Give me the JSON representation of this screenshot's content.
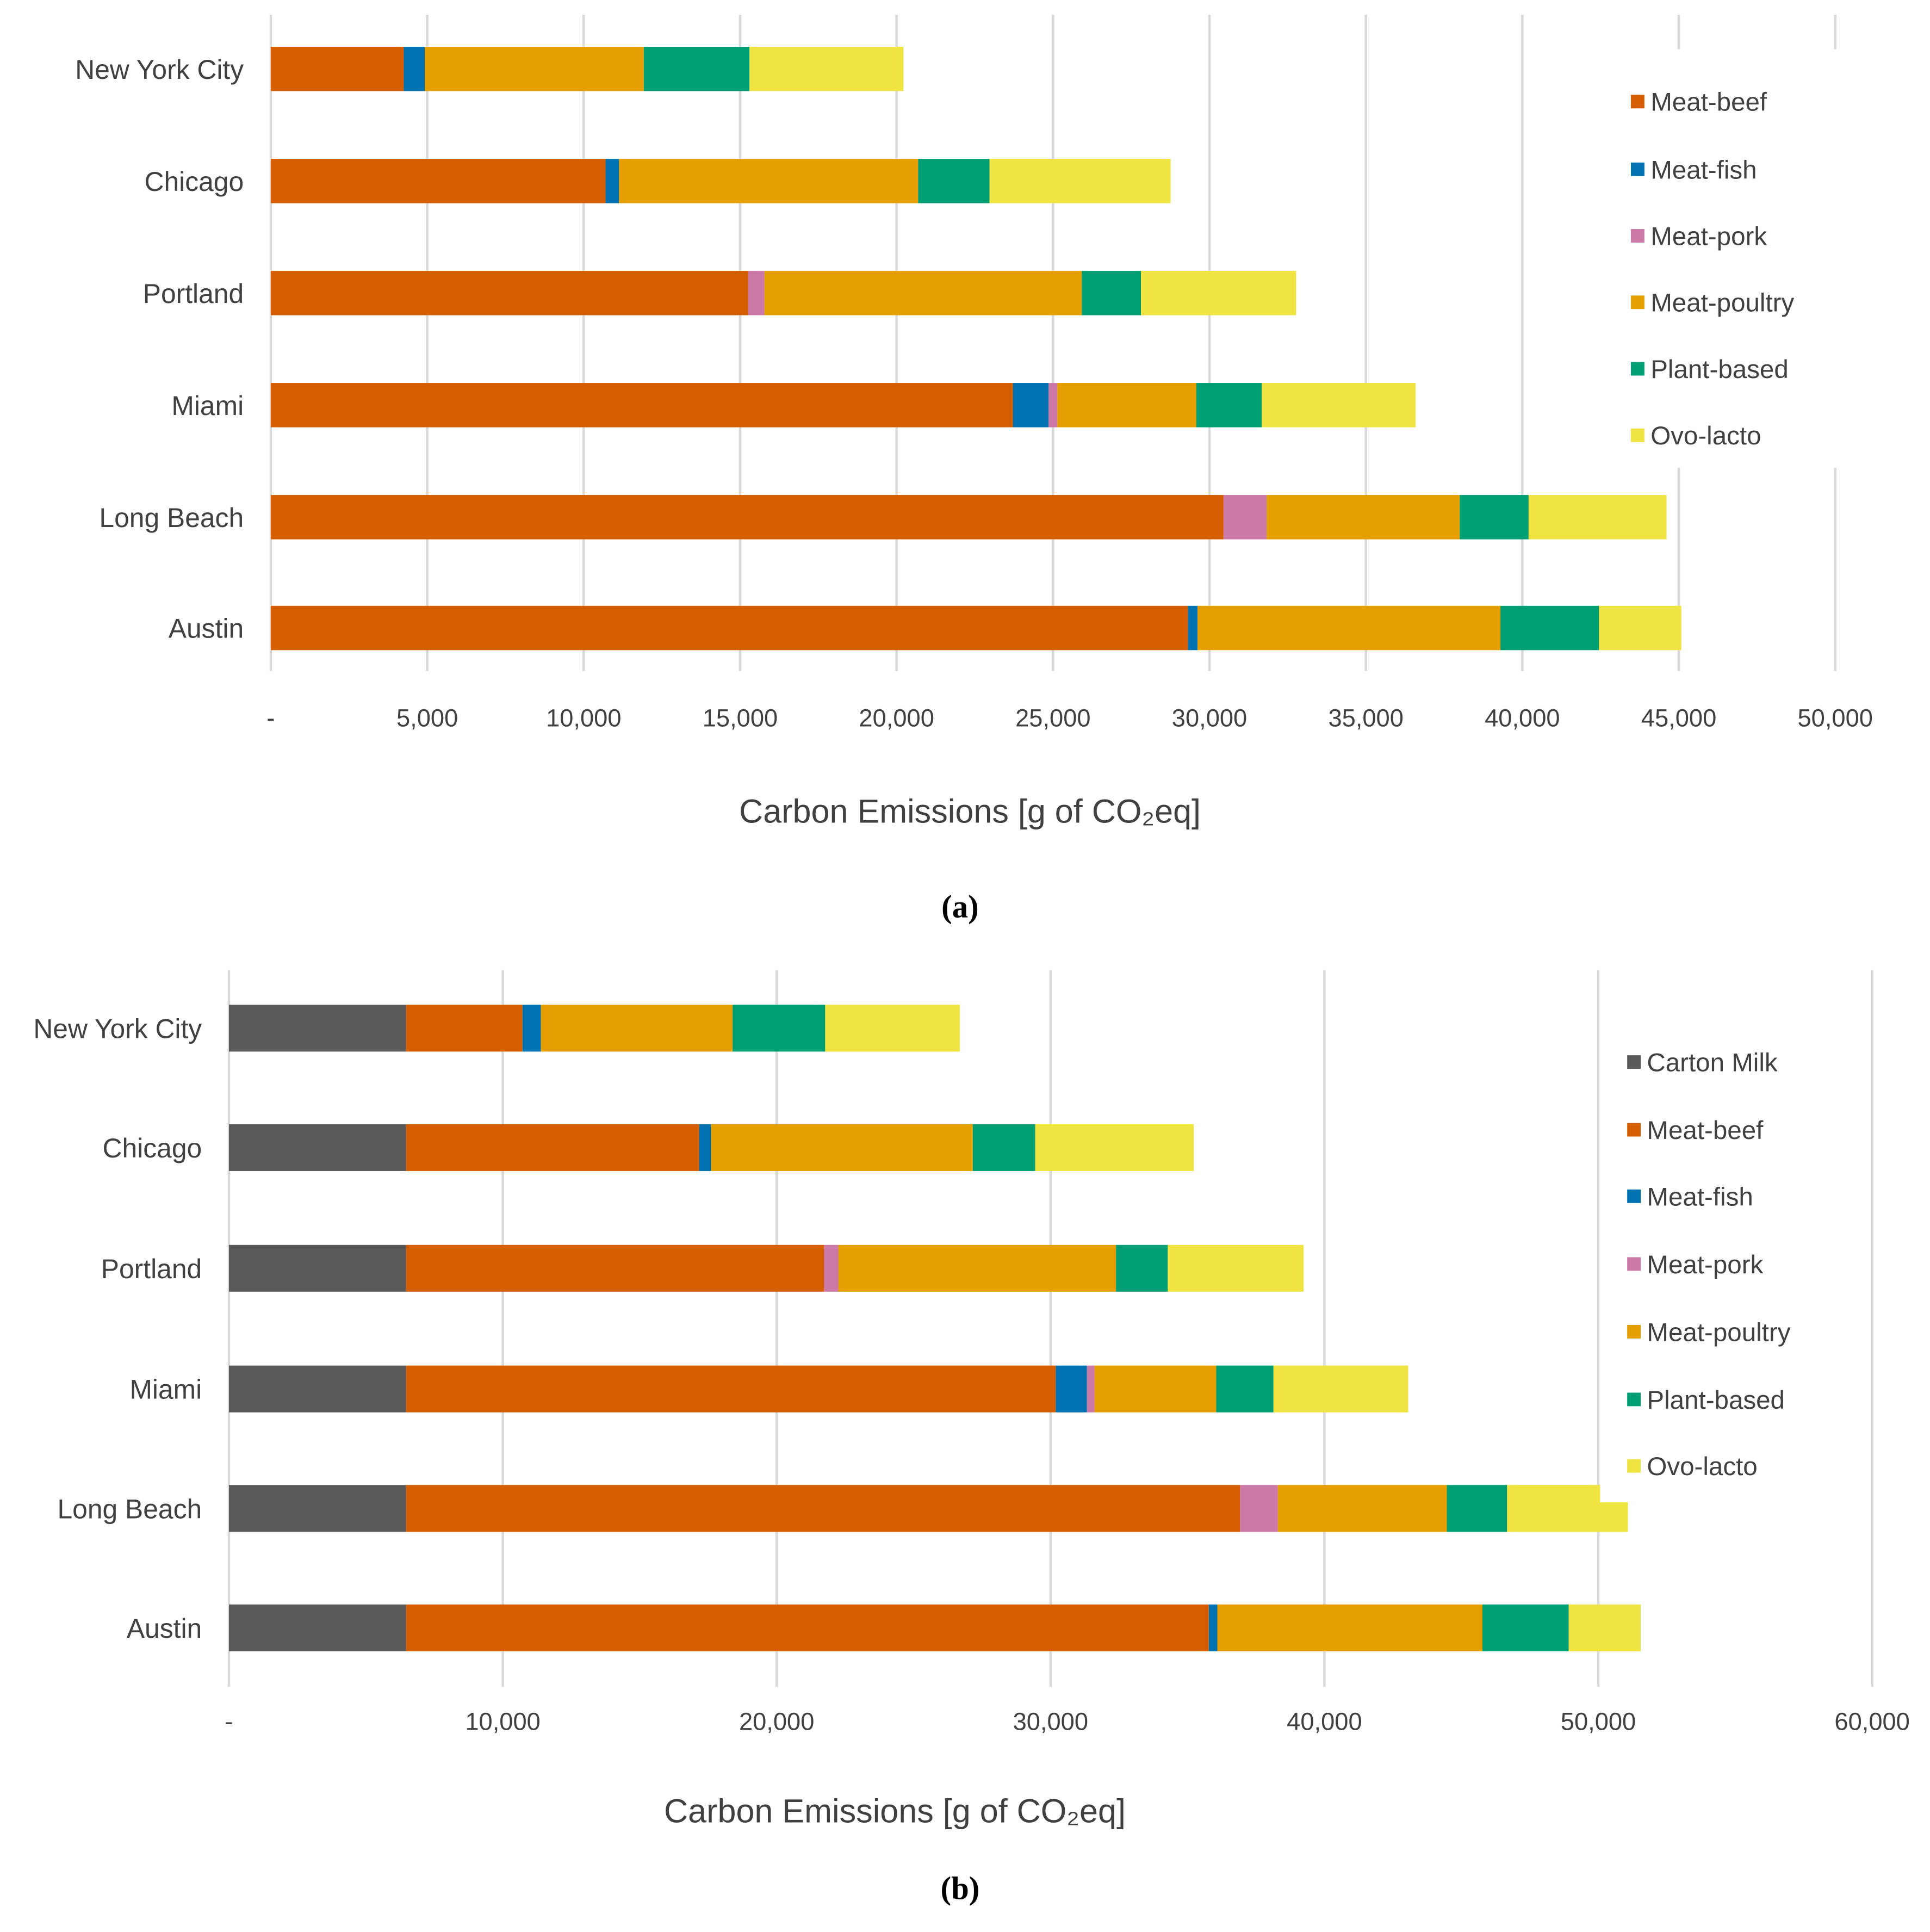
{
  "colors": {
    "Carton Milk": "#595959",
    "Meat-beef": "#D55E00",
    "Meat-fish": "#0072B2",
    "Meat-pork": "#CC79A7",
    "Meat-poultry": "#E69F00",
    "Plant-based": "#009E73",
    "Ovo-lacto": "#F0E442"
  },
  "chart_data": [
    {
      "type": "bar",
      "orientation": "horizontal",
      "stacked": true,
      "caption": "(a)",
      "xlabel": "Carbon Emissions [g of CO₂eq]",
      "ylabel": "",
      "xlim": [
        0,
        50000
      ],
      "xticks": [
        0,
        5000,
        10000,
        15000,
        20000,
        25000,
        30000,
        35000,
        40000,
        45000,
        50000
      ],
      "xtick_labels": [
        "-",
        "5,000",
        "10,000",
        "15,000",
        "20,000",
        "25,000",
        "30,000",
        "35,000",
        "40,000",
        "45,000",
        "50,000"
      ],
      "grid": true,
      "legend_position": "right",
      "categories": [
        "New York City",
        "Chicago",
        "Portland",
        "Miami",
        "Long Beach",
        "Austin"
      ],
      "series": [
        {
          "name": "Meat-beef",
          "values": [
            4250,
            10700,
            15260,
            23720,
            30450,
            29310
          ]
        },
        {
          "name": "Meat-fish",
          "values": [
            670,
            430,
            0,
            1140,
            0,
            310
          ]
        },
        {
          "name": "Meat-pork",
          "values": [
            0,
            0,
            520,
            280,
            1380,
            0
          ]
        },
        {
          "name": "Meat-poultry",
          "values": [
            7000,
            9560,
            10140,
            4440,
            6170,
            9680
          ]
        },
        {
          "name": "Plant-based",
          "values": [
            3380,
            2280,
            1890,
            2090,
            2200,
            3150
          ]
        },
        {
          "name": "Ovo-lacto",
          "values": [
            4920,
            5790,
            4960,
            4920,
            4410,
            2630
          ]
        }
      ]
    },
    {
      "type": "bar",
      "orientation": "horizontal",
      "stacked": true,
      "caption": "(b)",
      "xlabel": "Carbon Emissions [g of CO₂eq]",
      "ylabel": "",
      "xlim": [
        0,
        60000
      ],
      "xticks": [
        0,
        10000,
        20000,
        30000,
        40000,
        50000,
        60000
      ],
      "xtick_labels": [
        "-",
        "10,000",
        "20,000",
        "30,000",
        "40,000",
        "50,000",
        "60,000"
      ],
      "grid": true,
      "legend_position": "right",
      "categories": [
        "New York City",
        "Chicago",
        "Portland",
        "Miami",
        "Long Beach",
        "Austin"
      ],
      "series": [
        {
          "name": "Carton Milk",
          "values": [
            6470,
            6470,
            6470,
            6470,
            6470,
            6470
          ]
        },
        {
          "name": "Meat-beef",
          "values": [
            4250,
            10700,
            15260,
            23720,
            30450,
            29310
          ]
        },
        {
          "name": "Meat-fish",
          "values": [
            670,
            430,
            0,
            1140,
            0,
            310
          ]
        },
        {
          "name": "Meat-pork",
          "values": [
            0,
            0,
            520,
            280,
            1380,
            0
          ]
        },
        {
          "name": "Meat-poultry",
          "values": [
            7000,
            9560,
            10140,
            4440,
            6170,
            9680
          ]
        },
        {
          "name": "Plant-based",
          "values": [
            3380,
            2280,
            1890,
            2090,
            2200,
            3150
          ]
        },
        {
          "name": "Ovo-lacto",
          "values": [
            4920,
            5790,
            4960,
            4920,
            4410,
            2630
          ]
        }
      ]
    }
  ]
}
